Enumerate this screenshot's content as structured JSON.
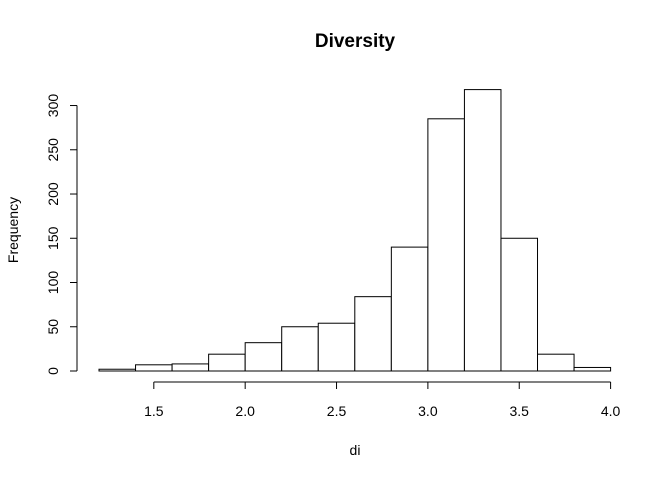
{
  "chart_data": {
    "type": "bar",
    "title": "Diversity",
    "xlabel": "di",
    "ylabel": "Frequency",
    "bins": [
      {
        "start": 1.2,
        "end": 1.4,
        "value": 2
      },
      {
        "start": 1.4,
        "end": 1.6,
        "value": 7
      },
      {
        "start": 1.6,
        "end": 1.8,
        "value": 8
      },
      {
        "start": 1.8,
        "end": 2.0,
        "value": 19
      },
      {
        "start": 2.0,
        "end": 2.2,
        "value": 32
      },
      {
        "start": 2.2,
        "end": 2.4,
        "value": 50
      },
      {
        "start": 2.4,
        "end": 2.6,
        "value": 54
      },
      {
        "start": 2.6,
        "end": 2.8,
        "value": 84
      },
      {
        "start": 2.8,
        "end": 3.0,
        "value": 140
      },
      {
        "start": 3.0,
        "end": 3.2,
        "value": 285
      },
      {
        "start": 3.2,
        "end": 3.4,
        "value": 318
      },
      {
        "start": 3.4,
        "end": 3.6,
        "value": 150
      },
      {
        "start": 3.6,
        "end": 3.8,
        "value": 19
      },
      {
        "start": 3.8,
        "end": 4.0,
        "value": 4
      }
    ],
    "x_ticks": [
      "1.5",
      "2.0",
      "2.5",
      "3.0",
      "3.5",
      "4.0"
    ],
    "y_ticks": [
      "0",
      "50",
      "100",
      "150",
      "200",
      "250",
      "300"
    ],
    "xlim": [
      1.2,
      4.0
    ],
    "ylim": [
      0,
      318
    ],
    "grid": false,
    "legend": "none"
  }
}
